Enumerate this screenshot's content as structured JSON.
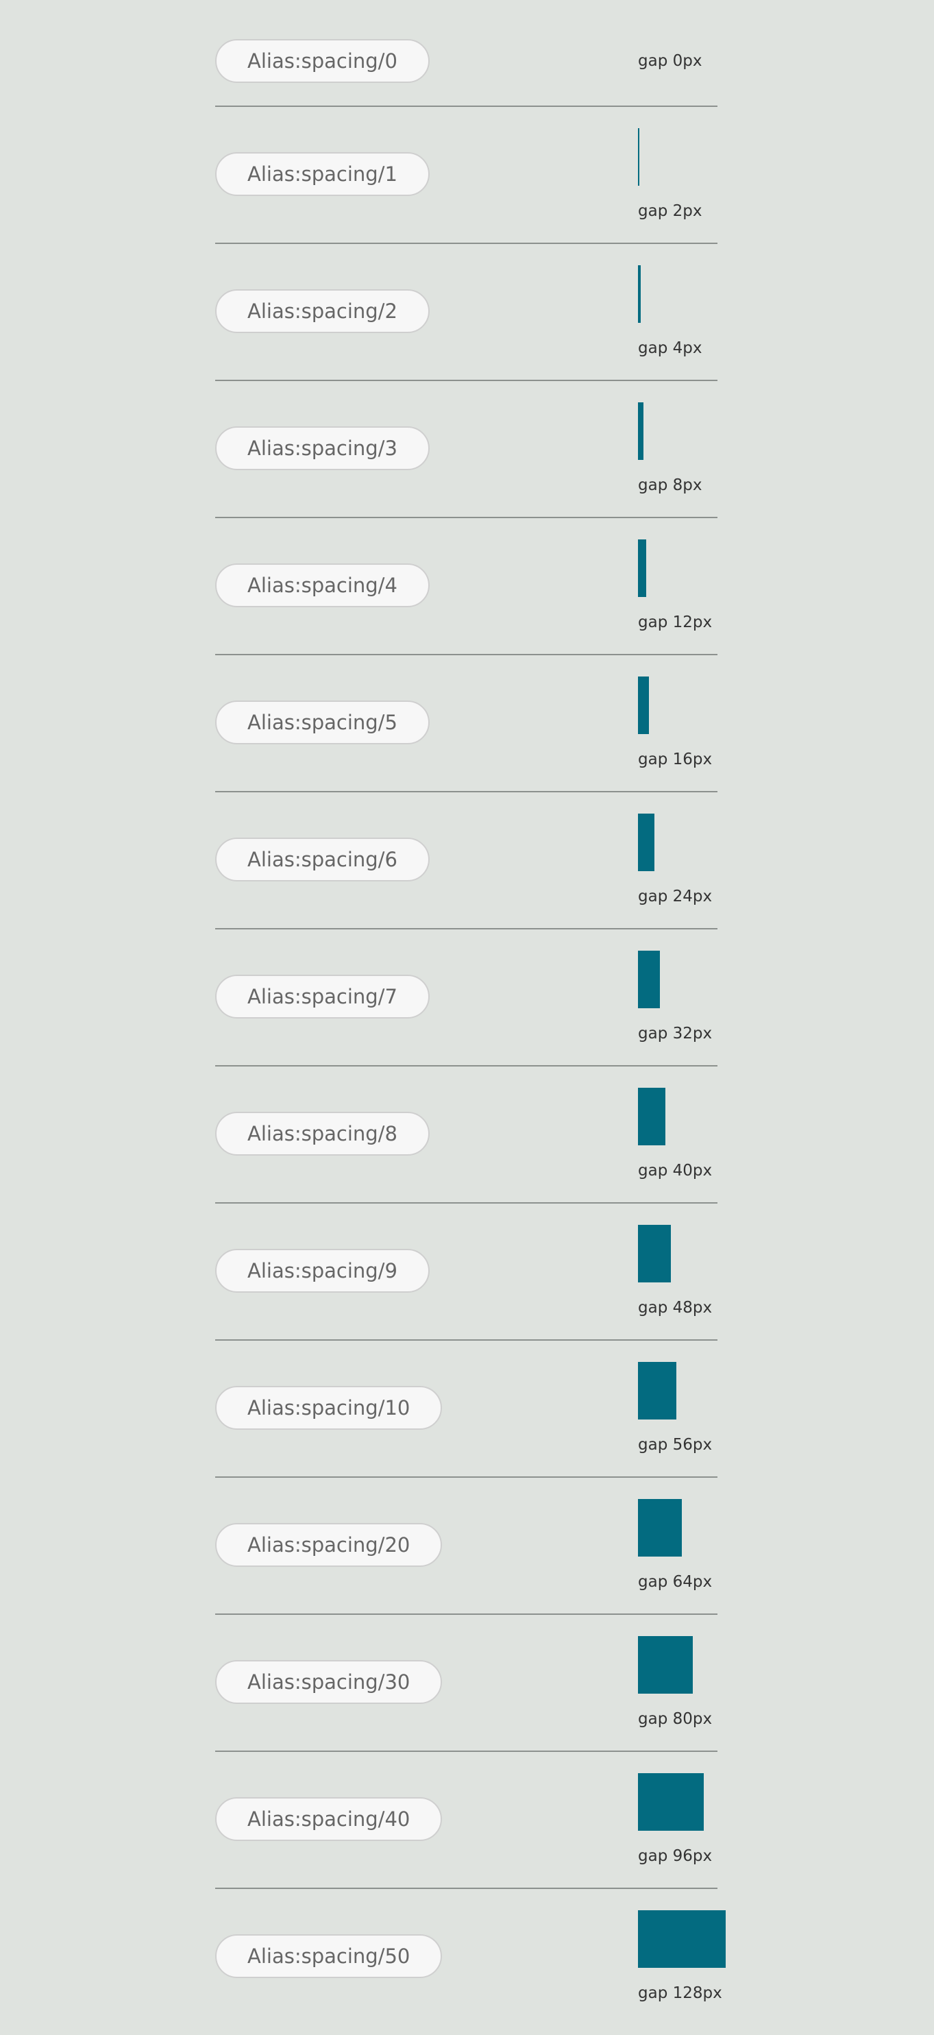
{
  "rows": [
    {
      "name": "Alias:spacing/0",
      "gap": 0,
      "gap_label": "gap 0px"
    },
    {
      "name": "Alias:spacing/1",
      "gap": 2,
      "gap_label": "gap 2px"
    },
    {
      "name": "Alias:spacing/2",
      "gap": 4,
      "gap_label": "gap 4px"
    },
    {
      "name": "Alias:spacing/3",
      "gap": 8,
      "gap_label": "gap 8px"
    },
    {
      "name": "Alias:spacing/4",
      "gap": 12,
      "gap_label": "gap 12px"
    },
    {
      "name": "Alias:spacing/5",
      "gap": 16,
      "gap_label": "gap 16px"
    },
    {
      "name": "Alias:spacing/6",
      "gap": 24,
      "gap_label": "gap 24px"
    },
    {
      "name": "Alias:spacing/7",
      "gap": 32,
      "gap_label": "gap 32px"
    },
    {
      "name": "Alias:spacing/8",
      "gap": 40,
      "gap_label": "gap 40px"
    },
    {
      "name": "Alias:spacing/9",
      "gap": 48,
      "gap_label": "gap 48px"
    },
    {
      "name": "Alias:spacing/10",
      "gap": 56,
      "gap_label": "gap 56px"
    },
    {
      "name": "Alias:spacing/20",
      "gap": 64,
      "gap_label": "gap 64px"
    },
    {
      "name": "Alias:spacing/30",
      "gap": 80,
      "gap_label": "gap 80px"
    },
    {
      "name": "Alias:spacing/40",
      "gap": 96,
      "gap_label": "gap 96px"
    },
    {
      "name": "Alias:spacing/50",
      "gap": 128,
      "gap_label": "gap 128px"
    }
  ]
}
